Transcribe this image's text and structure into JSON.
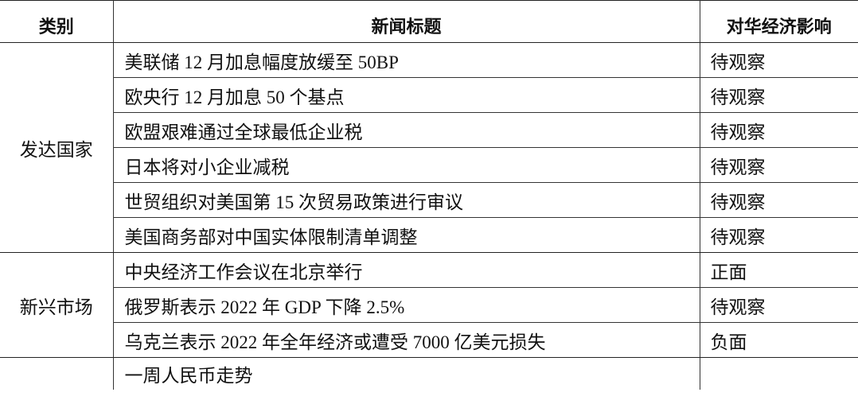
{
  "header": {
    "category": "类别",
    "title": "新闻标题",
    "impact": "对华经济影响"
  },
  "groups": [
    {
      "category": "发达国家",
      "rows": [
        {
          "title": "美联储 12 月加息幅度放缓至 50BP",
          "impact": "待观察"
        },
        {
          "title": "欧央行 12 月加息 50 个基点",
          "impact": "待观察"
        },
        {
          "title": "欧盟艰难通过全球最低企业税",
          "impact": "待观察"
        },
        {
          "title": "日本将对小企业减税",
          "impact": "待观察"
        },
        {
          "title": "世贸组织对美国第 15 次贸易政策进行审议",
          "impact": "待观察"
        },
        {
          "title": "美国商务部对中国实体限制清单调整",
          "impact": "待观察"
        }
      ]
    },
    {
      "category": "新兴市场",
      "rows": [
        {
          "title": "中央经济工作会议在北京举行",
          "impact": "正面"
        },
        {
          "title": "俄罗斯表示 2022 年 GDP 下降 2.5%",
          "impact": "待观察"
        },
        {
          "title": "乌克兰表示 2022 年全年经济或遭受 7000 亿美元损失",
          "impact": "负面"
        }
      ]
    },
    {
      "category": "",
      "rows": [
        {
          "title": "一周人民币走势",
          "impact": ""
        }
      ]
    }
  ]
}
